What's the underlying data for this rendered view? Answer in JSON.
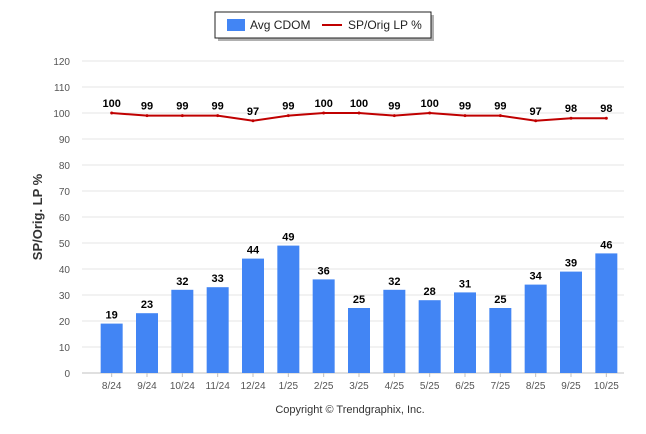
{
  "chart_data": {
    "type": "bar",
    "categories": [
      "8/24",
      "9/24",
      "10/24",
      "11/24",
      "12/24",
      "1/25",
      "2/25",
      "3/25",
      "4/25",
      "5/25",
      "6/25",
      "7/25",
      "8/25",
      "9/25",
      "10/25"
    ],
    "series": [
      {
        "name": "Avg CDOM",
        "type": "bar",
        "color": "#4285f4",
        "values": [
          19,
          23,
          32,
          33,
          44,
          49,
          36,
          25,
          32,
          28,
          31,
          25,
          34,
          39,
          46
        ]
      },
      {
        "name": "SP/Orig LP %",
        "type": "line",
        "color": "#c00000",
        "values": [
          100,
          99,
          99,
          99,
          97,
          99,
          100,
          100,
          99,
          100,
          99,
          99,
          97,
          98,
          98
        ]
      }
    ],
    "ylabel": "SP/Orig. LP %",
    "ylim": [
      0,
      120
    ],
    "yticks": [
      0,
      10,
      20,
      30,
      40,
      50,
      60,
      70,
      80,
      90,
      100,
      110,
      120
    ],
    "grid": true,
    "legend": "top-center"
  },
  "copyright": "Copyright © Trendgraphix, Inc."
}
